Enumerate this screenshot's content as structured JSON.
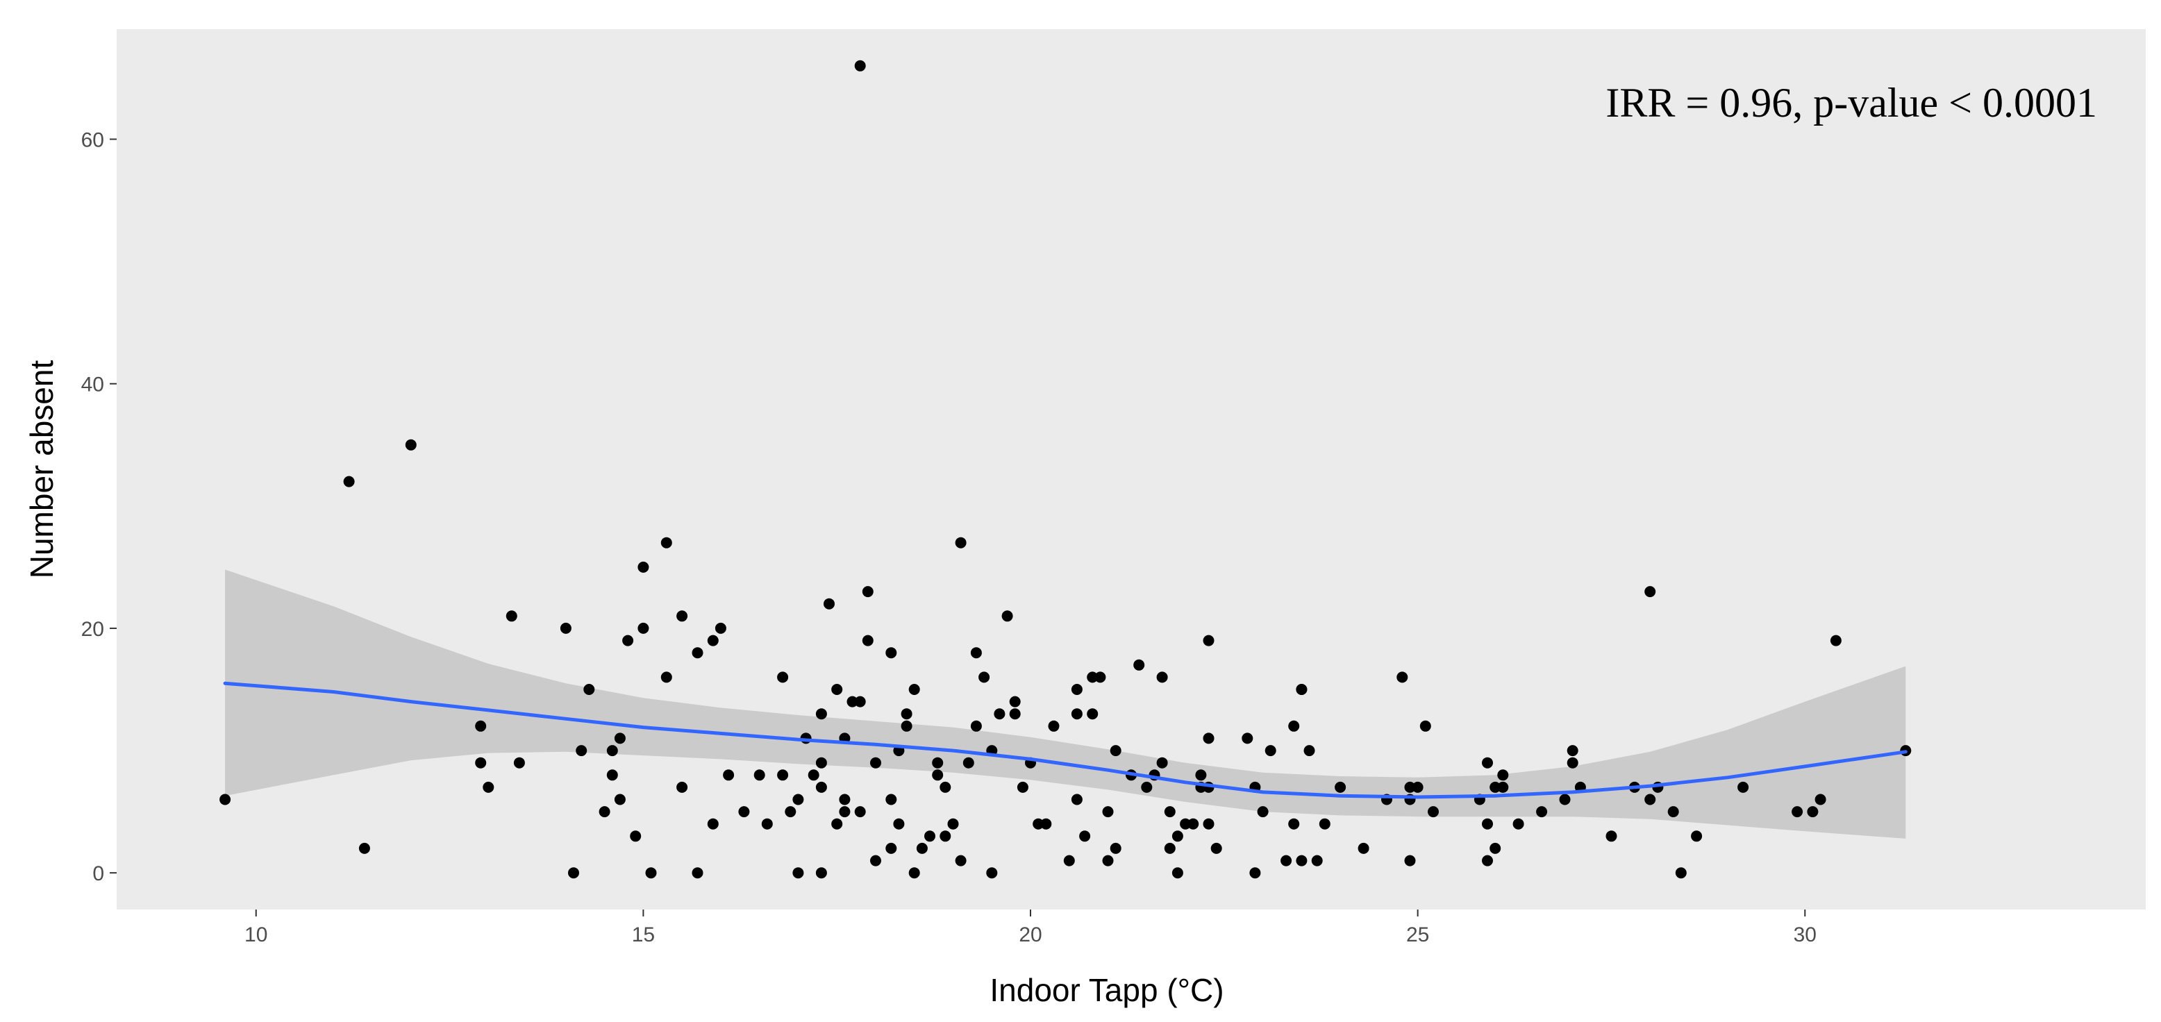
{
  "chart_data": {
    "type": "scatter",
    "title": "",
    "xlabel": "Indoor Tapp (°C)",
    "ylabel": "Number absent",
    "annotation": "IRR = 0.96, p-value < 0.0001",
    "xlim": [
      8.2,
      34.4
    ],
    "ylim": [
      -3,
      69
    ],
    "x_ticks": [
      10,
      15,
      20,
      25,
      30
    ],
    "y_ticks": [
      0,
      20,
      40,
      60
    ],
    "grid": false,
    "legend": "none",
    "colors": {
      "panel": "#ebebeb",
      "points": "#000000",
      "smooth_line": "#3366ff",
      "confidence_band": "#c6c6c6"
    },
    "points": [
      [
        9.6,
        6
      ],
      [
        11.2,
        32
      ],
      [
        11.4,
        2
      ],
      [
        12.0,
        35
      ],
      [
        12.9,
        12
      ],
      [
        12.9,
        9
      ],
      [
        13.0,
        7
      ],
      [
        13.3,
        21
      ],
      [
        13.4,
        9
      ],
      [
        14.0,
        20
      ],
      [
        14.1,
        0
      ],
      [
        14.2,
        10
      ],
      [
        14.3,
        15
      ],
      [
        14.5,
        5
      ],
      [
        14.6,
        8
      ],
      [
        14.6,
        10
      ],
      [
        14.7,
        11
      ],
      [
        14.7,
        6
      ],
      [
        14.8,
        19
      ],
      [
        14.9,
        3
      ],
      [
        15.0,
        20
      ],
      [
        15.0,
        25
      ],
      [
        15.1,
        0
      ],
      [
        15.3,
        16
      ],
      [
        15.3,
        27
      ],
      [
        15.5,
        21
      ],
      [
        15.5,
        7
      ],
      [
        15.7,
        18
      ],
      [
        15.7,
        0
      ],
      [
        15.9,
        19
      ],
      [
        15.9,
        4
      ],
      [
        16.0,
        20
      ],
      [
        16.1,
        8
      ],
      [
        16.3,
        5
      ],
      [
        16.5,
        8
      ],
      [
        16.6,
        4
      ],
      [
        16.8,
        16
      ],
      [
        16.8,
        8
      ],
      [
        16.9,
        5
      ],
      [
        17.0,
        6
      ],
      [
        17.0,
        0
      ],
      [
        17.1,
        11
      ],
      [
        17.2,
        8
      ],
      [
        17.3,
        7
      ],
      [
        17.3,
        13
      ],
      [
        17.3,
        9
      ],
      [
        17.3,
        0
      ],
      [
        17.4,
        22
      ],
      [
        17.5,
        4
      ],
      [
        17.5,
        15
      ],
      [
        17.6,
        11
      ],
      [
        17.6,
        6
      ],
      [
        17.6,
        5
      ],
      [
        17.7,
        14
      ],
      [
        17.8,
        14
      ],
      [
        17.8,
        5
      ],
      [
        17.8,
        66
      ],
      [
        17.9,
        19
      ],
      [
        17.9,
        23
      ],
      [
        18.0,
        9
      ],
      [
        18.0,
        1
      ],
      [
        18.2,
        2
      ],
      [
        18.2,
        18
      ],
      [
        18.2,
        6
      ],
      [
        18.3,
        4
      ],
      [
        18.3,
        10
      ],
      [
        18.4,
        12
      ],
      [
        18.4,
        13
      ],
      [
        18.5,
        0
      ],
      [
        18.5,
        15
      ],
      [
        18.6,
        2
      ],
      [
        18.7,
        3
      ],
      [
        18.8,
        9
      ],
      [
        18.8,
        8
      ],
      [
        18.9,
        3
      ],
      [
        18.9,
        7
      ],
      [
        19.0,
        4
      ],
      [
        19.1,
        1
      ],
      [
        19.1,
        27
      ],
      [
        19.2,
        9
      ],
      [
        19.3,
        12
      ],
      [
        19.3,
        18
      ],
      [
        19.4,
        16
      ],
      [
        19.5,
        10
      ],
      [
        19.5,
        0
      ],
      [
        19.6,
        13
      ],
      [
        19.7,
        21
      ],
      [
        19.8,
        14
      ],
      [
        19.8,
        13
      ],
      [
        19.9,
        7
      ],
      [
        20.0,
        9
      ],
      [
        20.1,
        4
      ],
      [
        20.2,
        4
      ],
      [
        20.3,
        12
      ],
      [
        20.5,
        1
      ],
      [
        20.6,
        6
      ],
      [
        20.6,
        13
      ],
      [
        20.6,
        15
      ],
      [
        20.7,
        3
      ],
      [
        20.8,
        16
      ],
      [
        20.8,
        13
      ],
      [
        20.9,
        16
      ],
      [
        21.0,
        1
      ],
      [
        21.0,
        5
      ],
      [
        21.1,
        10
      ],
      [
        21.1,
        2
      ],
      [
        21.3,
        8
      ],
      [
        21.4,
        17
      ],
      [
        21.5,
        7
      ],
      [
        21.6,
        8
      ],
      [
        21.7,
        9
      ],
      [
        21.7,
        16
      ],
      [
        21.8,
        5
      ],
      [
        21.8,
        2
      ],
      [
        21.9,
        0
      ],
      [
        21.9,
        3
      ],
      [
        22.0,
        4
      ],
      [
        22.1,
        4
      ],
      [
        22.2,
        8
      ],
      [
        22.2,
        7
      ],
      [
        22.3,
        4
      ],
      [
        22.3,
        19
      ],
      [
        22.3,
        11
      ],
      [
        22.3,
        7
      ],
      [
        22.4,
        2
      ],
      [
        22.8,
        11
      ],
      [
        22.9,
        0
      ],
      [
        22.9,
        7
      ],
      [
        23.0,
        5
      ],
      [
        23.1,
        10
      ],
      [
        23.3,
        1
      ],
      [
        23.4,
        4
      ],
      [
        23.4,
        12
      ],
      [
        23.5,
        15
      ],
      [
        23.5,
        1
      ],
      [
        23.5,
        15
      ],
      [
        23.6,
        10
      ],
      [
        23.7,
        1
      ],
      [
        23.8,
        4
      ],
      [
        24.0,
        7
      ],
      [
        24.3,
        2
      ],
      [
        24.6,
        6
      ],
      [
        24.8,
        16
      ],
      [
        24.9,
        7
      ],
      [
        24.9,
        1
      ],
      [
        24.9,
        6
      ],
      [
        25.0,
        7
      ],
      [
        25.1,
        12
      ],
      [
        25.2,
        5
      ],
      [
        25.8,
        6
      ],
      [
        25.9,
        9
      ],
      [
        25.9,
        4
      ],
      [
        25.9,
        1
      ],
      [
        26.0,
        7
      ],
      [
        26.0,
        2
      ],
      [
        26.1,
        8
      ],
      [
        26.1,
        7
      ],
      [
        26.3,
        4
      ],
      [
        26.6,
        5
      ],
      [
        26.9,
        6
      ],
      [
        27.0,
        10
      ],
      [
        27.0,
        9
      ],
      [
        27.1,
        7
      ],
      [
        27.5,
        3
      ],
      [
        27.8,
        7
      ],
      [
        28.0,
        6
      ],
      [
        28.0,
        23
      ],
      [
        28.1,
        7
      ],
      [
        28.3,
        5
      ],
      [
        28.4,
        0
      ],
      [
        28.6,
        3
      ],
      [
        29.2,
        7
      ],
      [
        29.9,
        5
      ],
      [
        30.1,
        5
      ],
      [
        30.2,
        6
      ],
      [
        30.4,
        19
      ],
      [
        31.3,
        10
      ]
    ],
    "smooth": {
      "x": [
        9.6,
        11,
        12,
        13,
        14,
        15,
        16,
        17,
        18,
        19,
        20,
        21,
        22,
        23,
        24,
        25,
        26,
        27,
        28,
        29,
        30,
        31.3
      ],
      "y": [
        15.5,
        14.8,
        14.0,
        13.3,
        12.6,
        11.9,
        11.4,
        10.9,
        10.5,
        10.0,
        9.3,
        8.4,
        7.4,
        6.6,
        6.3,
        6.2,
        6.3,
        6.6,
        7.1,
        7.8,
        8.7,
        9.9
      ],
      "lower": [
        6.3,
        8.0,
        9.2,
        9.8,
        9.9,
        9.6,
        9.3,
        8.9,
        8.6,
        8.2,
        7.6,
        6.8,
        5.8,
        5.0,
        4.7,
        4.6,
        4.6,
        4.6,
        4.4,
        3.9,
        3.4,
        2.8
      ],
      "upper": [
        24.8,
        21.8,
        19.3,
        17.1,
        15.5,
        14.3,
        13.5,
        12.9,
        12.4,
        11.9,
        11.1,
        10.1,
        9.0,
        8.2,
        7.9,
        7.8,
        8.0,
        8.7,
        9.9,
        11.7,
        14.0,
        16.9
      ]
    }
  }
}
